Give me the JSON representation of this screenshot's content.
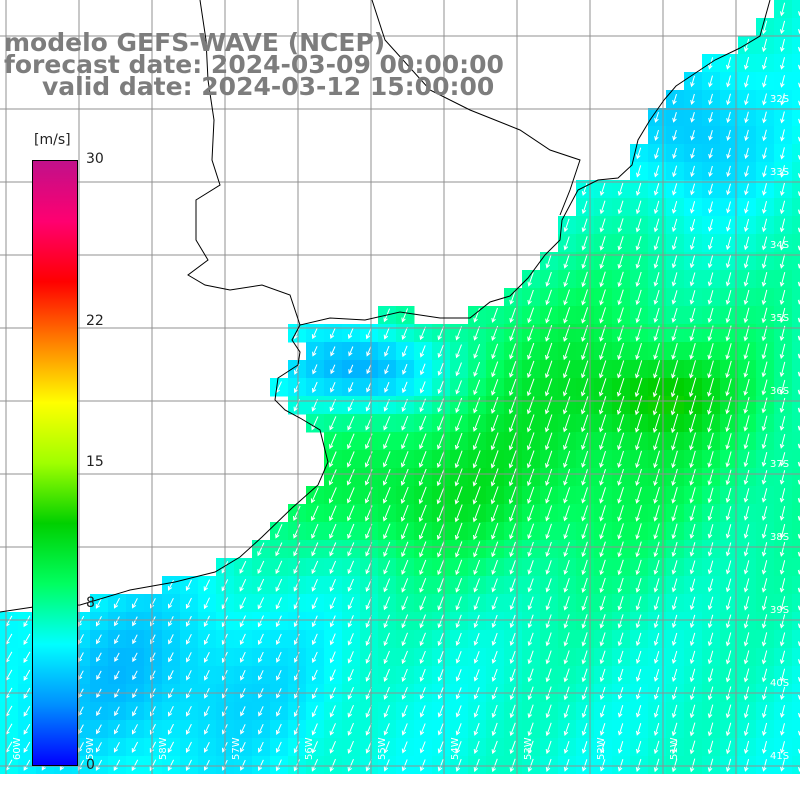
{
  "title": {
    "line1": "modelo GEFS-WAVE (NCEP)",
    "line2": "forecast date: 2024-03-09 00:00:00",
    "line3": "valid date: 2024-03-12 15:00:00"
  },
  "colorbar": {
    "unit": "[m/s]",
    "min": 0,
    "max": 30,
    "ticks": [
      "30",
      "22",
      "15",
      "8",
      "0"
    ],
    "tick_values": [
      30,
      22,
      15,
      8,
      0
    ],
    "colors": [
      "#0000ff",
      "#0090ff",
      "#00ffff",
      "#00ff60",
      "#00d000",
      "#a0ff00",
      "#ffff00",
      "#ff8000",
      "#ff0000",
      "#ff0070",
      "#c0108a"
    ]
  },
  "map": {
    "lat_labels": [
      "32S",
      "33S",
      "34S",
      "35S",
      "36S",
      "37S",
      "38S",
      "39S",
      "40S",
      "41S"
    ],
    "lon_labels": [
      "60W",
      "59W",
      "58W",
      "57W",
      "56W",
      "55W",
      "54W",
      "53W",
      "52W",
      "51W"
    ]
  }
}
